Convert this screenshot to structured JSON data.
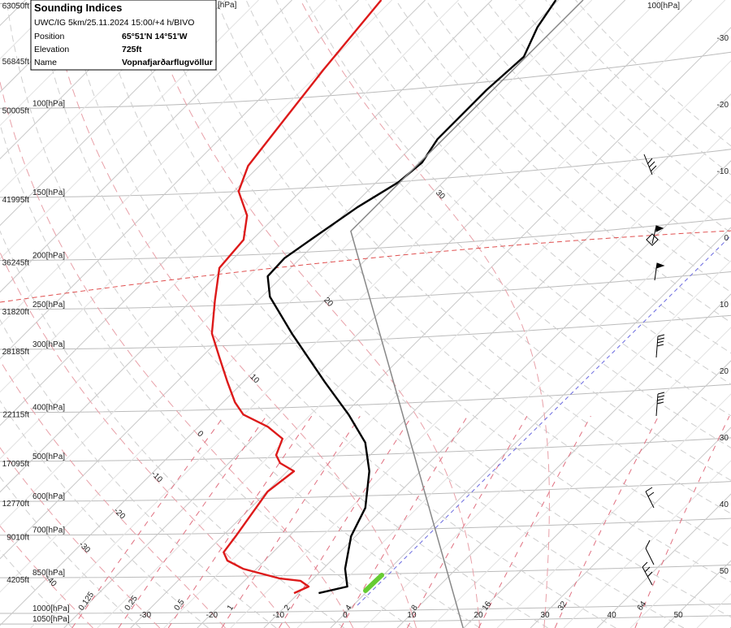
{
  "chart_data": {
    "type": "skewt",
    "title": "Sounding Indices",
    "run": "UWC/IG 5km/25.11.2024 15:00/+4 h/BIVO",
    "fields": [
      {
        "label": "Position",
        "value": "65°51'N 14°51'W"
      },
      {
        "label": "Elevation",
        "value": "725ft"
      },
      {
        "label": "Name",
        "value": "Vopnafjarðarflugvöllur"
      }
    ],
    "ylim": [
      1069,
      61
    ],
    "xlim": [
      -49.6,
      60.1
    ],
    "log_y": true,
    "yticks": [
      {
        "value": 62,
        "label": "[hPa]"
      },
      {
        "value": 100,
        "label": "100[hPa]"
      },
      {
        "value": 150,
        "label": "150[hPa]"
      },
      {
        "value": 200,
        "label": "200[hPa]"
      },
      {
        "value": 250,
        "label": "250[hPa]"
      },
      {
        "value": 300,
        "label": "300[hPa]"
      },
      {
        "value": 400,
        "label": "400[hPa]"
      },
      {
        "value": 500,
        "label": "500[hPa]"
      },
      {
        "value": 600,
        "label": "600[hPa]"
      },
      {
        "value": 700,
        "label": "700[hPa]"
      },
      {
        "value": 850,
        "label": "850[hPa]"
      },
      {
        "value": 1000,
        "label": "1000[hPa]"
      },
      {
        "value": 1050,
        "label": "1050[hPa]"
      }
    ],
    "right_isobar_label": {
      "value": 100,
      "label": "100[hPa]"
    },
    "height_ticks": [
      {
        "value": 62,
        "label": "63050ft"
      },
      {
        "value": 80,
        "label": "56845ft"
      },
      {
        "value": 100,
        "label": "50005ft"
      },
      {
        "value": 150,
        "label": "41995ft"
      },
      {
        "value": 200,
        "label": "36245ft"
      },
      {
        "value": 250,
        "label": "31820ft"
      },
      {
        "value": 300,
        "label": "28185ft"
      },
      {
        "value": 400,
        "label": "22115ft"
      },
      {
        "value": 500,
        "label": "17095ft"
      },
      {
        "value": 600,
        "label": "12770ft"
      },
      {
        "value": 700,
        "label": "9010ft"
      },
      {
        "value": 850,
        "label": "4205ft"
      }
    ],
    "xticks": [
      -30,
      -20,
      -10,
      0,
      10,
      20,
      30,
      40,
      50
    ],
    "mixing_ratios": [
      0.125,
      0.25,
      0.5,
      1,
      2,
      4,
      8,
      16,
      32,
      64
    ],
    "moist_adiabats": [
      30,
      20,
      10,
      0,
      -10,
      -20,
      -30,
      -40
    ],
    "grid": true,
    "series": [
      {
        "color": "#000000",
        "pressure": [
          912,
          885,
          816,
          703,
          618,
          523,
          459,
          404,
          348,
          279,
          236,
          215,
          198,
          179,
          157,
          140,
          128,
          115,
          92,
          79,
          69,
          61
        ],
        "values": [
          -7,
          -3.7,
          -6.7,
          -10.7,
          -12.8,
          -17.7,
          -22.6,
          -29.3,
          -37.8,
          -50,
          -58.8,
          -62.2,
          -62.4,
          -61,
          -59.1,
          -56.7,
          -56.1,
          -57.3,
          -57.3,
          -56.7,
          -59.1,
          -60.4
        ]
      },
      {
        "color": "#dd1a1a",
        "pressure": [
          912,
          885,
          862,
          853,
          816,
          786,
          757,
          703,
          574,
          523,
          504,
          486,
          451,
          427,
          404,
          382,
          348,
          311,
          279,
          240,
          207,
          182,
          163,
          146,
          130,
          110,
          84,
          61
        ],
        "values": [
          -10.7,
          -9.5,
          -11.6,
          -15,
          -22,
          -25.6,
          -27.4,
          -28,
          -29.9,
          -29,
          -32.3,
          -34.1,
          -35.6,
          -39.6,
          -45.1,
          -48.2,
          -52.4,
          -57.3,
          -62,
          -66.5,
          -70.7,
          -71.3,
          -74.4,
          -79.3,
          -81.7,
          -82.9,
          -84.8,
          -86.6
        ]
      },
      {
        "color": "#888888",
        "pressure": [
          1069,
          175,
          61
        ],
        "values": [
          19.9,
          -56.5,
          -56.3
        ]
      }
    ]
  }
}
